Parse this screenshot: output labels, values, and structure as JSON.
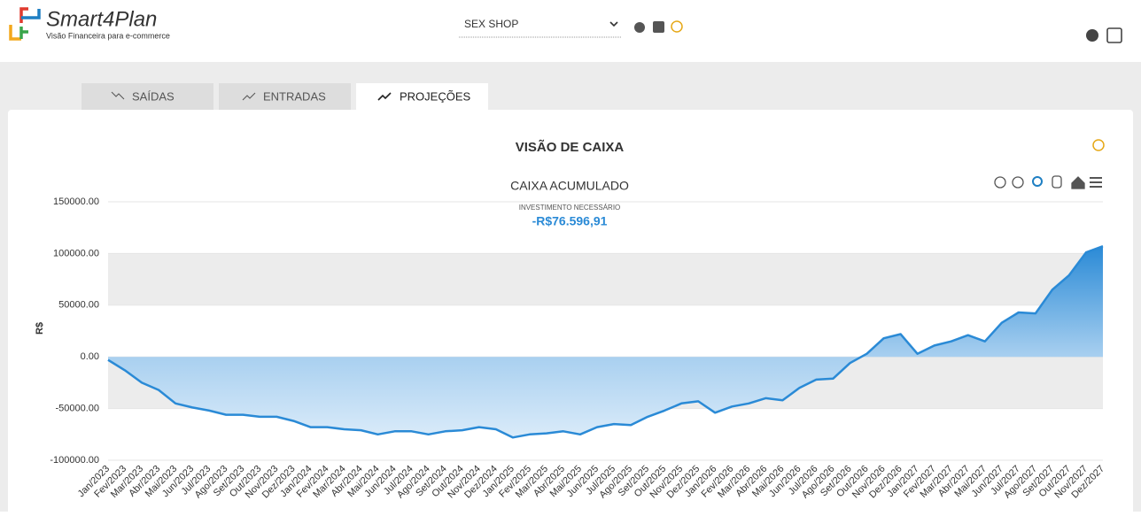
{
  "header": {
    "logo": "Smart4Plan",
    "tagline": "Visão Financeira para e-commerce",
    "store": "SEX SHOP"
  },
  "tabs": [
    "SAÍDAS",
    "ENTRADAS",
    "PROJEÇÕES"
  ],
  "card_title": "VISÃO DE CAIXA",
  "chart_data": {
    "type": "area",
    "title": "CAIXA ACUMULADO",
    "subtitle": "INVESTIMENTO NECESSÁRIO",
    "highlight": "-R$76.596,91",
    "y_label": "R$",
    "color": "#2a8ad6",
    "categories": [
      "Jan/2023",
      "Fev/2023",
      "Mar/2023",
      "Abr/2023",
      "Mai/2023",
      "Jun/2023",
      "Jul/2023",
      "Ago/2023",
      "Set/2023",
      "Out/2023",
      "Nov/2023",
      "Dez/2023",
      "Jan/2024",
      "Fev/2024",
      "Mar/2024",
      "Abr/2024",
      "Mai/2024",
      "Jun/2024",
      "Jul/2024",
      "Ago/2024",
      "Set/2024",
      "Out/2024",
      "Nov/2024",
      "Dez/2024",
      "Jan/2025",
      "Fev/2025",
      "Mar/2025",
      "Abr/2025",
      "Mai/2025",
      "Jun/2025",
      "Jul/2025",
      "Ago/2025",
      "Set/2025",
      "Out/2025",
      "Nov/2025",
      "Dez/2025",
      "Jan/2026",
      "Fev/2026",
      "Mar/2026",
      "Abr/2026",
      "Mai/2026",
      "Jun/2026",
      "Jul/2026",
      "Ago/2026",
      "Set/2026",
      "Out/2026",
      "Nov/2026",
      "Dez/2026",
      "Jan/2027",
      "Fev/2027",
      "Mar/2027",
      "Abr/2027",
      "Mai/2027",
      "Jun/2027",
      "Jul/2027",
      "Ago/2027",
      "Set/2027",
      "Out/2027",
      "Nov/2027",
      "Dez/2027"
    ],
    "values": [
      -3000,
      -13000,
      -25000,
      -32000,
      -45000,
      -49000,
      -52000,
      -56000,
      -56000,
      -58000,
      -58000,
      -62000,
      -68000,
      -68000,
      -70000,
      -71000,
      -75000,
      -72000,
      -72000,
      -75000,
      -72000,
      -71000,
      -68000,
      -70000,
      -78000,
      -75000,
      -74000,
      -72000,
      -75000,
      -68000,
      -65000,
      -66000,
      -58000,
      -52000,
      -45000,
      -43000,
      -54000,
      -48000,
      -45000,
      -40000,
      -42000,
      -30000,
      -22000,
      -21000,
      -6000,
      3000,
      18000,
      22000,
      3000,
      11000,
      15000,
      21000,
      15000,
      33000,
      43000,
      42000,
      65000,
      79000,
      101000,
      107000
    ],
    "ylim": [
      -100000,
      150000
    ],
    "yticks": [
      {
        "value": -100000,
        "label": "-100000.00"
      },
      {
        "value": -50000,
        "label": "-50000.00"
      },
      {
        "value": 0,
        "label": "0.00"
      },
      {
        "value": 50000,
        "label": "50000.00"
      },
      {
        "value": 100000,
        "label": "100000.00"
      },
      {
        "value": 150000,
        "label": "150000.00"
      }
    ],
    "grid": true
  }
}
